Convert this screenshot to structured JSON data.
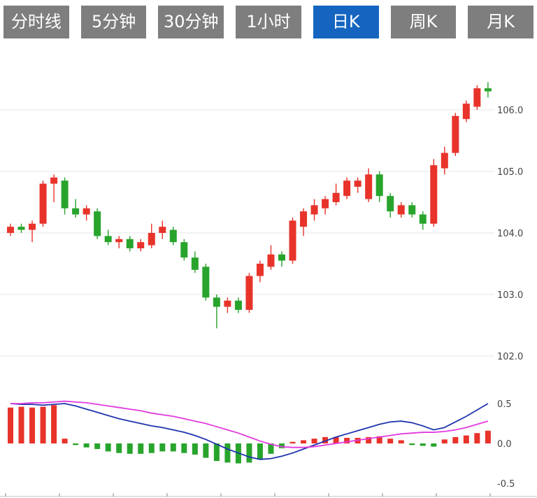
{
  "tabs": {
    "text_color": "#ffffff",
    "inactive_bg": "#7e7e7e",
    "active_bg": "#1565c0",
    "items": [
      {
        "label": "分时线",
        "active": false
      },
      {
        "label": "5分钟",
        "active": false
      },
      {
        "label": "30分钟",
        "active": false
      },
      {
        "label": "1小时",
        "active": false
      },
      {
        "label": "日K",
        "active": true
      },
      {
        "label": "周K",
        "active": false
      },
      {
        "label": "月K",
        "active": false
      }
    ]
  },
  "chart_data": {
    "type": "candlestick",
    "grid": "horizontal",
    "legend": "none",
    "grid_color": "#e4e4e4",
    "axis_text_color": "#444444",
    "panels": [
      {
        "name": "price",
        "ylim": [
          101.9,
          106.8
        ],
        "ticks": [
          {
            "value": 106.0,
            "label": "106.0"
          },
          {
            "value": 105.0,
            "label": "105.0"
          },
          {
            "value": 104.0,
            "label": "104.0"
          },
          {
            "value": 103.0,
            "label": "103.0"
          },
          {
            "value": 102.0,
            "label": "102.0"
          }
        ],
        "series_format": [
          "open",
          "high",
          "low",
          "close"
        ],
        "up_color": "#e8332a",
        "down_color": "#28a42c",
        "candles": [
          [
            104.0,
            104.15,
            103.95,
            104.1
          ],
          [
            104.1,
            104.15,
            104.0,
            104.05
          ],
          [
            104.05,
            104.2,
            103.85,
            104.15
          ],
          [
            104.15,
            104.85,
            104.1,
            104.8
          ],
          [
            104.8,
            104.95,
            104.5,
            104.9
          ],
          [
            104.85,
            104.9,
            104.3,
            104.4
          ],
          [
            104.4,
            104.55,
            104.25,
            104.3
          ],
          [
            104.3,
            104.45,
            104.2,
            104.4
          ],
          [
            104.35,
            104.4,
            103.9,
            103.95
          ],
          [
            103.95,
            104.05,
            103.8,
            103.85
          ],
          [
            103.85,
            103.95,
            103.75,
            103.9
          ],
          [
            103.9,
            103.95,
            103.7,
            103.75
          ],
          [
            103.75,
            103.9,
            103.7,
            103.85
          ],
          [
            103.8,
            104.15,
            103.75,
            104.0
          ],
          [
            104.0,
            104.2,
            103.9,
            104.1
          ],
          [
            104.05,
            104.1,
            103.8,
            103.85
          ],
          [
            103.85,
            103.9,
            103.55,
            103.6
          ],
          [
            103.6,
            103.7,
            103.35,
            103.4
          ],
          [
            103.45,
            103.5,
            102.9,
            102.95
          ],
          [
            102.95,
            103.0,
            102.45,
            102.8
          ],
          [
            102.8,
            102.95,
            102.7,
            102.9
          ],
          [
            102.9,
            102.95,
            102.7,
            102.75
          ],
          [
            102.75,
            103.35,
            102.7,
            103.3
          ],
          [
            103.3,
            103.55,
            103.2,
            103.5
          ],
          [
            103.45,
            103.8,
            103.4,
            103.65
          ],
          [
            103.65,
            103.7,
            103.45,
            103.55
          ],
          [
            103.55,
            104.25,
            103.5,
            104.2
          ],
          [
            104.1,
            104.4,
            103.95,
            104.35
          ],
          [
            104.3,
            104.55,
            104.2,
            104.45
          ],
          [
            104.4,
            104.6,
            104.3,
            104.55
          ],
          [
            104.5,
            104.8,
            104.45,
            104.65
          ],
          [
            104.6,
            104.9,
            104.55,
            104.85
          ],
          [
            104.75,
            104.9,
            104.65,
            104.85
          ],
          [
            104.55,
            105.05,
            104.5,
            104.95
          ],
          [
            104.95,
            105.0,
            104.5,
            104.6
          ],
          [
            104.6,
            104.65,
            104.25,
            104.35
          ],
          [
            104.3,
            104.5,
            104.25,
            104.45
          ],
          [
            104.45,
            104.5,
            104.25,
            104.3
          ],
          [
            104.3,
            104.35,
            104.05,
            104.15
          ],
          [
            104.15,
            105.2,
            104.1,
            105.1
          ],
          [
            105.05,
            105.4,
            104.95,
            105.3
          ],
          [
            105.3,
            105.95,
            105.25,
            105.9
          ],
          [
            105.85,
            106.15,
            105.8,
            106.1
          ],
          [
            106.05,
            106.4,
            106.0,
            106.35
          ],
          [
            106.35,
            106.45,
            106.2,
            106.3
          ]
        ]
      },
      {
        "name": "macd",
        "ylim": [
          -0.55,
          0.6
        ],
        "ticks": [
          {
            "value": 0.5,
            "label": "0.5"
          },
          {
            "value": 0.0,
            "label": "0.0"
          },
          {
            "value": -0.5,
            "label": "-0.5"
          }
        ],
        "hist_up_color": "#e8332a",
        "hist_down_color": "#28a42c",
        "dif_color": "#1f33ae",
        "dea_color": "#e23adf",
        "histogram": [
          0.45,
          0.46,
          0.45,
          0.46,
          0.48,
          0.06,
          -0.02,
          -0.05,
          -0.07,
          -0.1,
          -0.12,
          -0.13,
          -0.13,
          -0.12,
          -0.1,
          -0.1,
          -0.12,
          -0.14,
          -0.18,
          -0.22,
          -0.24,
          -0.25,
          -0.24,
          -0.2,
          -0.13,
          -0.06,
          0.02,
          0.04,
          0.06,
          0.08,
          0.08,
          0.07,
          0.07,
          0.08,
          0.09,
          0.06,
          0.04,
          -0.02,
          -0.03,
          -0.04,
          0.05,
          0.08,
          0.1,
          0.13,
          0.16
        ],
        "dif": [
          0.5,
          0.49,
          0.49,
          0.48,
          0.49,
          0.5,
          0.47,
          0.43,
          0.39,
          0.35,
          0.31,
          0.28,
          0.25,
          0.22,
          0.2,
          0.17,
          0.14,
          0.1,
          0.05,
          -0.01,
          -0.07,
          -0.12,
          -0.17,
          -0.2,
          -0.19,
          -0.16,
          -0.12,
          -0.07,
          -0.02,
          0.03,
          0.08,
          0.12,
          0.16,
          0.2,
          0.24,
          0.27,
          0.28,
          0.26,
          0.22,
          0.17,
          0.2,
          0.27,
          0.34,
          0.42,
          0.5
        ],
        "dea": [
          0.5,
          0.5,
          0.51,
          0.51,
          0.52,
          0.53,
          0.52,
          0.51,
          0.49,
          0.47,
          0.45,
          0.43,
          0.41,
          0.38,
          0.36,
          0.34,
          0.31,
          0.28,
          0.25,
          0.21,
          0.17,
          0.13,
          0.08,
          0.03,
          -0.01,
          -0.04,
          -0.05,
          -0.05,
          -0.04,
          -0.02,
          0.0,
          0.02,
          0.04,
          0.06,
          0.08,
          0.1,
          0.12,
          0.13,
          0.14,
          0.14,
          0.15,
          0.17,
          0.2,
          0.24,
          0.28
        ]
      }
    ]
  }
}
